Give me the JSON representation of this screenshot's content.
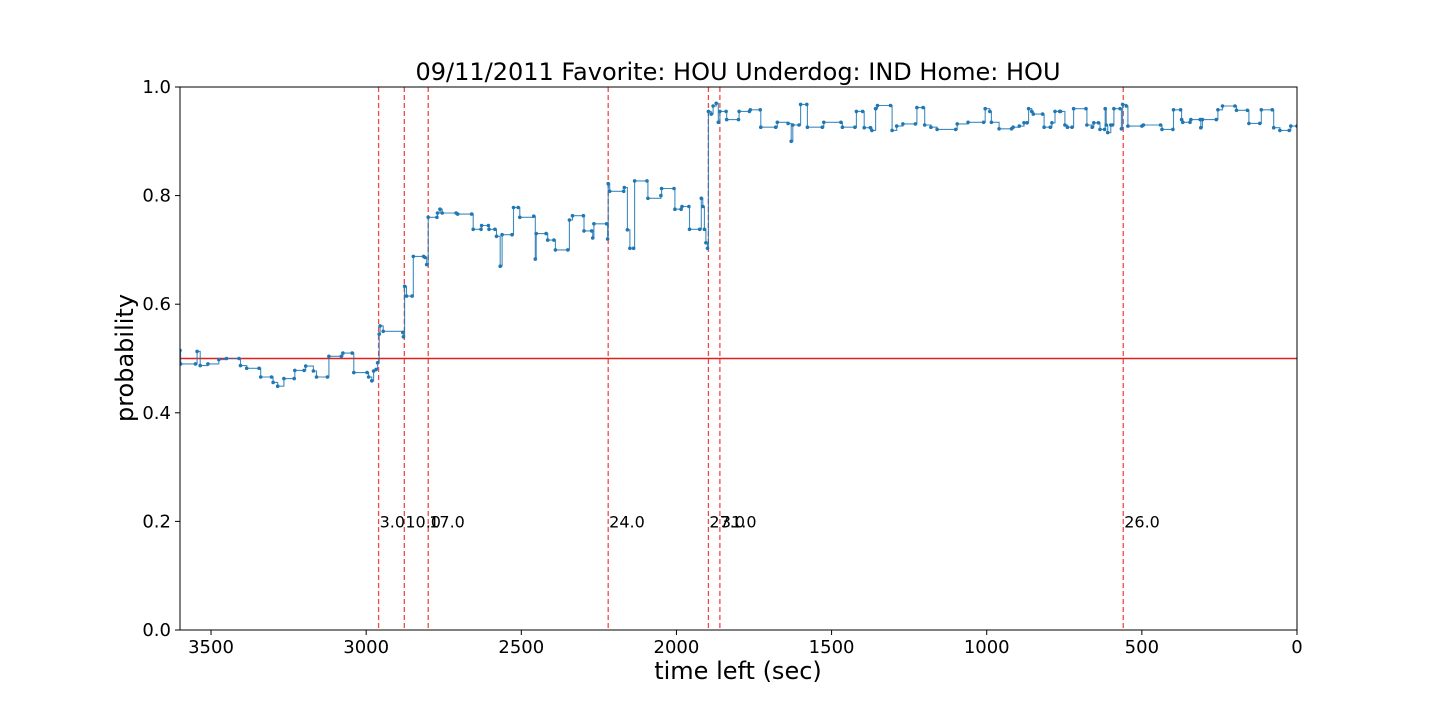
{
  "chart_data": {
    "type": "line",
    "title": "09/11/2011 Favorite: HOU Underdog: IND Home: HOU",
    "xlabel": "time left (sec)",
    "ylabel": "probability",
    "xlim": [
      3600,
      0
    ],
    "ylim": [
      0.0,
      1.0
    ],
    "x_ticks": [
      3500,
      3000,
      2500,
      2000,
      1500,
      1000,
      500,
      0
    ],
    "x_tick_labels": [
      "3500",
      "3000",
      "2500",
      "2000",
      "1500",
      "1000",
      "500",
      "0"
    ],
    "y_ticks": [
      0.0,
      0.2,
      0.4,
      0.6,
      0.8,
      1.0
    ],
    "y_tick_labels": [
      "0.0",
      "0.2",
      "0.4",
      "0.6",
      "0.8",
      "1.0"
    ],
    "grid": false,
    "colors": {
      "series": "#1f77b4",
      "reference": "#e0201c",
      "events": "#ef4a4a"
    },
    "reference_line": {
      "y": 0.5
    },
    "event_lines": [
      {
        "x": 2960,
        "label": "3.0"
      },
      {
        "x": 2877,
        "label": "10.0"
      },
      {
        "x": 2800,
        "label": "17.0"
      },
      {
        "x": 2220,
        "label": "24.0"
      },
      {
        "x": 1897,
        "label": "27.0"
      },
      {
        "x": 1860,
        "label": "31.0"
      },
      {
        "x": 560,
        "label": "26.0"
      }
    ],
    "series": [
      {
        "points": [
          [
            3600,
            0.515
          ],
          [
            3598,
            0.49
          ],
          [
            3550,
            0.49
          ],
          [
            3545,
            0.513
          ],
          [
            3535,
            0.487
          ],
          [
            3510,
            0.49
          ],
          [
            3475,
            0.498
          ],
          [
            3450,
            0.5
          ],
          [
            3410,
            0.5
          ],
          [
            3405,
            0.487
          ],
          [
            3385,
            0.482
          ],
          [
            3345,
            0.482
          ],
          [
            3340,
            0.466
          ],
          [
            3305,
            0.466
          ],
          [
            3300,
            0.456
          ],
          [
            3285,
            0.449
          ],
          [
            3265,
            0.463
          ],
          [
            3232,
            0.463
          ],
          [
            3230,
            0.478
          ],
          [
            3200,
            0.478
          ],
          [
            3195,
            0.486
          ],
          [
            3170,
            0.477
          ],
          [
            3160,
            0.466
          ],
          [
            3125,
            0.466
          ],
          [
            3120,
            0.504
          ],
          [
            3080,
            0.504
          ],
          [
            3075,
            0.51
          ],
          [
            3045,
            0.51
          ],
          [
            3040,
            0.474
          ],
          [
            2997,
            0.474
          ],
          [
            2992,
            0.466
          ],
          [
            2982,
            0.459
          ],
          [
            2976,
            0.477
          ],
          [
            2968,
            0.48
          ],
          [
            2963,
            0.492
          ],
          [
            2958,
            0.545
          ],
          [
            2955,
            0.56
          ],
          [
            2945,
            0.55
          ],
          [
            2882,
            0.548
          ],
          [
            2880,
            0.54
          ],
          [
            2876,
            0.633
          ],
          [
            2870,
            0.615
          ],
          [
            2852,
            0.615
          ],
          [
            2848,
            0.688
          ],
          [
            2815,
            0.688
          ],
          [
            2810,
            0.686
          ],
          [
            2805,
            0.673
          ],
          [
            2800,
            0.76
          ],
          [
            2772,
            0.76
          ],
          [
            2770,
            0.768
          ],
          [
            2762,
            0.775
          ],
          [
            2755,
            0.768
          ],
          [
            2710,
            0.768
          ],
          [
            2705,
            0.766
          ],
          [
            2660,
            0.766
          ],
          [
            2655,
            0.738
          ],
          [
            2630,
            0.738
          ],
          [
            2628,
            0.745
          ],
          [
            2606,
            0.745
          ],
          [
            2604,
            0.738
          ],
          [
            2585,
            0.738
          ],
          [
            2580,
            0.725
          ],
          [
            2568,
            0.67
          ],
          [
            2562,
            0.728
          ],
          [
            2530,
            0.728
          ],
          [
            2525,
            0.778
          ],
          [
            2510,
            0.778
          ],
          [
            2505,
            0.76
          ],
          [
            2460,
            0.762
          ],
          [
            2455,
            0.683
          ],
          [
            2452,
            0.73
          ],
          [
            2420,
            0.73
          ],
          [
            2415,
            0.718
          ],
          [
            2395,
            0.718
          ],
          [
            2390,
            0.7
          ],
          [
            2350,
            0.7
          ],
          [
            2345,
            0.755
          ],
          [
            2335,
            0.763
          ],
          [
            2300,
            0.763
          ],
          [
            2298,
            0.735
          ],
          [
            2273,
            0.735
          ],
          [
            2270,
            0.722
          ],
          [
            2266,
            0.748
          ],
          [
            2225,
            0.748
          ],
          [
            2222,
            0.72
          ],
          [
            2220,
            0.822
          ],
          [
            2215,
            0.808
          ],
          [
            2170,
            0.808
          ],
          [
            2168,
            0.815
          ],
          [
            2158,
            0.737
          ],
          [
            2150,
            0.703
          ],
          [
            2138,
            0.703
          ],
          [
            2135,
            0.827
          ],
          [
            2095,
            0.827
          ],
          [
            2092,
            0.795
          ],
          [
            2050,
            0.8
          ],
          [
            2048,
            0.813
          ],
          [
            2008,
            0.813
          ],
          [
            2005,
            0.775
          ],
          [
            1985,
            0.775
          ],
          [
            1982,
            0.78
          ],
          [
            1960,
            0.78
          ],
          [
            1958,
            0.738
          ],
          [
            1925,
            0.738
          ],
          [
            1920,
            0.795
          ],
          [
            1915,
            0.78
          ],
          [
            1910,
            0.738
          ],
          [
            1905,
            0.713
          ],
          [
            1900,
            0.703
          ],
          [
            1897,
            0.955
          ],
          [
            1888,
            0.95
          ],
          [
            1882,
            0.965
          ],
          [
            1872,
            0.97
          ],
          [
            1865,
            0.935
          ],
          [
            1860,
            0.955
          ],
          [
            1840,
            0.955
          ],
          [
            1838,
            0.94
          ],
          [
            1800,
            0.94
          ],
          [
            1798,
            0.955
          ],
          [
            1765,
            0.955
          ],
          [
            1762,
            0.958
          ],
          [
            1730,
            0.958
          ],
          [
            1728,
            0.926
          ],
          [
            1680,
            0.926
          ],
          [
            1675,
            0.935
          ],
          [
            1640,
            0.933
          ],
          [
            1630,
            0.9
          ],
          [
            1625,
            0.93
          ],
          [
            1605,
            0.93
          ],
          [
            1600,
            0.968
          ],
          [
            1580,
            0.968
          ],
          [
            1578,
            0.926
          ],
          [
            1530,
            0.926
          ],
          [
            1525,
            0.935
          ],
          [
            1470,
            0.935
          ],
          [
            1465,
            0.926
          ],
          [
            1425,
            0.926
          ],
          [
            1420,
            0.955
          ],
          [
            1400,
            0.955
          ],
          [
            1395,
            0.925
          ],
          [
            1375,
            0.925
          ],
          [
            1370,
            0.92
          ],
          [
            1358,
            0.96
          ],
          [
            1352,
            0.966
          ],
          [
            1310,
            0.966
          ],
          [
            1305,
            0.92
          ],
          [
            1290,
            0.928
          ],
          [
            1270,
            0.932
          ],
          [
            1230,
            0.932
          ],
          [
            1225,
            0.962
          ],
          [
            1205,
            0.962
          ],
          [
            1200,
            0.93
          ],
          [
            1180,
            0.926
          ],
          [
            1160,
            0.922
          ],
          [
            1100,
            0.922
          ],
          [
            1095,
            0.932
          ],
          [
            1060,
            0.935
          ],
          [
            1010,
            0.935
          ],
          [
            1005,
            0.96
          ],
          [
            990,
            0.955
          ],
          [
            985,
            0.935
          ],
          [
            960,
            0.923
          ],
          [
            920,
            0.923
          ],
          [
            915,
            0.926
          ],
          [
            895,
            0.928
          ],
          [
            880,
            0.934
          ],
          [
            870,
            0.934
          ],
          [
            865,
            0.96
          ],
          [
            855,
            0.955
          ],
          [
            850,
            0.95
          ],
          [
            820,
            0.95
          ],
          [
            815,
            0.926
          ],
          [
            795,
            0.926
          ],
          [
            790,
            0.934
          ],
          [
            780,
            0.955
          ],
          [
            765,
            0.955
          ],
          [
            762,
            0.955
          ],
          [
            748,
            0.93
          ],
          [
            740,
            0.926
          ],
          [
            725,
            0.926
          ],
          [
            720,
            0.96
          ],
          [
            680,
            0.96
          ],
          [
            677,
            0.93
          ],
          [
            660,
            0.926
          ],
          [
            655,
            0.934
          ],
          [
            640,
            0.934
          ],
          [
            635,
            0.922
          ],
          [
            620,
            0.922
          ],
          [
            618,
            0.96
          ],
          [
            615,
            0.93
          ],
          [
            610,
            0.916
          ],
          [
            600,
            0.93
          ],
          [
            595,
            0.93
          ],
          [
            590,
            0.96
          ],
          [
            570,
            0.96
          ],
          [
            566,
            0.923
          ],
          [
            562,
            0.968
          ],
          [
            550,
            0.965
          ],
          [
            545,
            0.928
          ],
          [
            500,
            0.928
          ],
          [
            495,
            0.93
          ],
          [
            440,
            0.93
          ],
          [
            435,
            0.922
          ],
          [
            400,
            0.922
          ],
          [
            398,
            0.958
          ],
          [
            375,
            0.958
          ],
          [
            372,
            0.94
          ],
          [
            368,
            0.935
          ],
          [
            345,
            0.935
          ],
          [
            342,
            0.94
          ],
          [
            312,
            0.94
          ],
          [
            310,
            0.925
          ],
          [
            305,
            0.94
          ],
          [
            260,
            0.94
          ],
          [
            255,
            0.958
          ],
          [
            240,
            0.965
          ],
          [
            200,
            0.965
          ],
          [
            195,
            0.957
          ],
          [
            160,
            0.957
          ],
          [
            155,
            0.933
          ],
          [
            120,
            0.933
          ],
          [
            115,
            0.958
          ],
          [
            80,
            0.958
          ],
          [
            75,
            0.925
          ],
          [
            55,
            0.92
          ],
          [
            25,
            0.92
          ],
          [
            20,
            0.928
          ],
          [
            0,
            0.928
          ]
        ]
      }
    ]
  }
}
